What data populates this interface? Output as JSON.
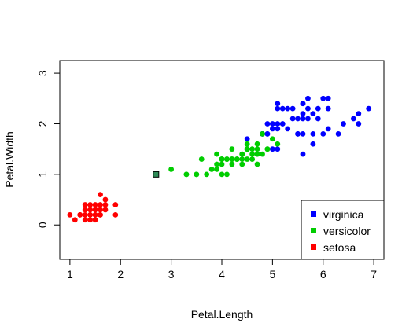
{
  "chart_data": {
    "type": "scatter",
    "title": "",
    "xlabel": "Petal.Length",
    "ylabel": "Petal.Width",
    "xlim": [
      0.8,
      7.2
    ],
    "ylim": [
      -0.68,
      3.25
    ],
    "xticks": [
      1,
      2,
      3,
      4,
      5,
      6,
      7
    ],
    "yticks": [
      0,
      1,
      2,
      3
    ],
    "grid": false,
    "legend": {
      "position": "bottom-right"
    },
    "series": [
      {
        "name": "virginica",
        "color": "#0000ff",
        "points": [
          [
            6.0,
            2.5
          ],
          [
            5.1,
            1.9
          ],
          [
            5.9,
            2.1
          ],
          [
            5.6,
            1.8
          ],
          [
            5.8,
            2.2
          ],
          [
            6.6,
            2.1
          ],
          [
            4.5,
            1.7
          ],
          [
            6.3,
            1.8
          ],
          [
            5.8,
            1.8
          ],
          [
            6.1,
            2.5
          ],
          [
            5.1,
            2.0
          ],
          [
            5.3,
            1.9
          ],
          [
            5.5,
            2.1
          ],
          [
            5.0,
            2.0
          ],
          [
            5.1,
            2.4
          ],
          [
            5.3,
            2.3
          ],
          [
            5.5,
            1.8
          ],
          [
            6.7,
            2.2
          ],
          [
            6.9,
            2.3
          ],
          [
            5.0,
            1.5
          ],
          [
            5.7,
            2.3
          ],
          [
            4.9,
            2.0
          ],
          [
            6.7,
            2.0
          ],
          [
            4.9,
            1.8
          ],
          [
            5.7,
            2.1
          ],
          [
            6.0,
            1.8
          ],
          [
            4.8,
            1.8
          ],
          [
            4.9,
            1.8
          ],
          [
            5.6,
            2.1
          ],
          [
            5.8,
            1.6
          ],
          [
            6.1,
            1.9
          ],
          [
            6.4,
            2.0
          ],
          [
            5.6,
            2.2
          ],
          [
            5.1,
            1.5
          ],
          [
            5.6,
            1.4
          ],
          [
            6.1,
            2.3
          ],
          [
            5.6,
            2.4
          ],
          [
            5.5,
            1.8
          ],
          [
            4.8,
            1.8
          ],
          [
            5.4,
            2.1
          ],
          [
            5.6,
            2.4
          ],
          [
            5.1,
            2.3
          ],
          [
            5.9,
            2.3
          ],
          [
            5.7,
            2.5
          ],
          [
            5.2,
            2.3
          ],
          [
            5.0,
            1.9
          ],
          [
            5.2,
            2.0
          ],
          [
            5.4,
            2.3
          ]
        ]
      },
      {
        "name": "versicolor",
        "color": "#00cd00",
        "points": [
          [
            4.7,
            1.4
          ],
          [
            4.5,
            1.5
          ],
          [
            4.9,
            1.5
          ],
          [
            4.0,
            1.3
          ],
          [
            4.6,
            1.5
          ],
          [
            4.5,
            1.3
          ],
          [
            4.7,
            1.6
          ],
          [
            3.3,
            1.0
          ],
          [
            4.6,
            1.3
          ],
          [
            3.9,
            1.4
          ],
          [
            3.5,
            1.0
          ],
          [
            4.2,
            1.5
          ],
          [
            4.0,
            1.0
          ],
          [
            4.7,
            1.4
          ],
          [
            3.6,
            1.3
          ],
          [
            4.4,
            1.4
          ],
          [
            4.5,
            1.5
          ],
          [
            4.1,
            1.0
          ],
          [
            4.5,
            1.5
          ],
          [
            3.9,
            1.1
          ],
          [
            4.8,
            1.8
          ],
          [
            4.0,
            1.3
          ],
          [
            4.9,
            1.5
          ],
          [
            4.7,
            1.2
          ],
          [
            4.3,
            1.3
          ],
          [
            4.4,
            1.4
          ],
          [
            4.8,
            1.4
          ],
          [
            5.0,
            1.7
          ],
          [
            4.5,
            1.5
          ],
          [
            3.5,
            1.0
          ],
          [
            3.8,
            1.1
          ],
          [
            3.7,
            1.0
          ],
          [
            3.9,
            1.2
          ],
          [
            5.1,
            1.6
          ],
          [
            4.5,
            1.5
          ],
          [
            4.5,
            1.6
          ],
          [
            4.7,
            1.5
          ],
          [
            4.4,
            1.3
          ],
          [
            4.1,
            1.3
          ],
          [
            4.0,
            1.3
          ],
          [
            4.4,
            1.2
          ],
          [
            4.6,
            1.4
          ],
          [
            4.0,
            1.2
          ],
          [
            3.3,
            1.0
          ],
          [
            4.2,
            1.3
          ],
          [
            4.2,
            1.2
          ],
          [
            4.2,
            1.3
          ],
          [
            4.3,
            1.3
          ],
          [
            3.0,
            1.1
          ],
          [
            4.1,
            1.3
          ]
        ]
      },
      {
        "name": "setosa",
        "color": "#ff0000",
        "points": [
          [
            1.4,
            0.2
          ],
          [
            1.3,
            0.2
          ],
          [
            1.5,
            0.2
          ],
          [
            1.7,
            0.4
          ],
          [
            1.4,
            0.3
          ],
          [
            1.5,
            0.1
          ],
          [
            1.6,
            0.2
          ],
          [
            1.1,
            0.1
          ],
          [
            1.2,
            0.2
          ],
          [
            1.3,
            0.4
          ],
          [
            1.0,
            0.2
          ],
          [
            1.7,
            0.5
          ],
          [
            1.9,
            0.2
          ],
          [
            1.6,
            0.4
          ],
          [
            1.5,
            0.4
          ],
          [
            1.4,
            0.1
          ],
          [
            1.6,
            0.6
          ],
          [
            1.9,
            0.4
          ],
          [
            1.6,
            0.3
          ],
          [
            1.3,
            0.3
          ],
          [
            1.7,
            0.3
          ],
          [
            1.5,
            0.3
          ],
          [
            1.3,
            0.1
          ],
          [
            1.2,
            0.2
          ],
          [
            1.4,
            0.4
          ],
          [
            1.6,
            0.2
          ],
          [
            1.5,
            0.2
          ],
          [
            1.4,
            0.2
          ]
        ]
      },
      {
        "name": "",
        "color": "#2e8b57",
        "marker": "square",
        "points": [
          [
            2.7,
            1.0
          ]
        ]
      }
    ]
  }
}
